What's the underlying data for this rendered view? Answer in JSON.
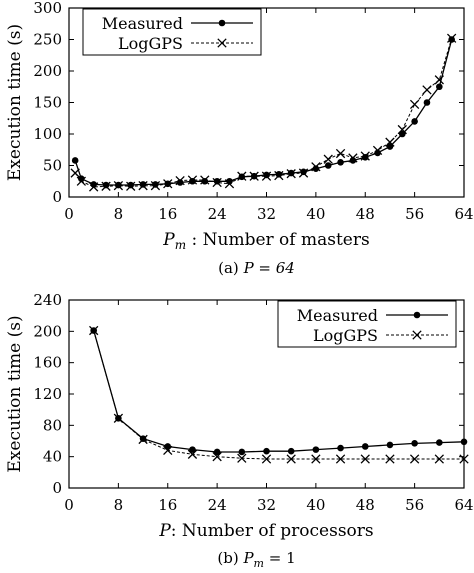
{
  "chart_data": [
    {
      "type": "line",
      "caption_prefix": "(a)",
      "caption_formula": "P = 64",
      "xlabel_var": "P",
      "xlabel_sub": "m",
      "xlabel_text": ": Number of masters",
      "ylabel": "Execution time (s)",
      "xlim": [
        0,
        64
      ],
      "ylim": [
        0,
        300
      ],
      "xticks": [
        0,
        8,
        16,
        24,
        32,
        40,
        48,
        56,
        64
      ],
      "yticks": [
        0,
        50,
        100,
        150,
        200,
        250,
        300
      ],
      "legend_position": "top-left",
      "series": [
        {
          "name": "Measured",
          "marker": "dot",
          "points": [
            [
              1,
              58
            ],
            [
              2,
              29
            ],
            [
              4,
              20
            ],
            [
              6,
              19
            ],
            [
              8,
              19
            ],
            [
              10,
              19
            ],
            [
              12,
              20
            ],
            [
              14,
              20
            ],
            [
              16,
              21
            ],
            [
              18,
              23
            ],
            [
              20,
              25
            ],
            [
              22,
              25
            ],
            [
              24,
              25
            ],
            [
              26,
              25
            ],
            [
              28,
              32
            ],
            [
              30,
              33
            ],
            [
              32,
              35
            ],
            [
              34,
              36
            ],
            [
              36,
              38
            ],
            [
              38,
              40
            ],
            [
              40,
              45
            ],
            [
              42,
              50
            ],
            [
              44,
              55
            ],
            [
              46,
              58
            ],
            [
              48,
              63
            ],
            [
              50,
              70
            ],
            [
              52,
              80
            ],
            [
              54,
              100
            ],
            [
              56,
              120
            ],
            [
              58,
              150
            ],
            [
              60,
              175
            ],
            [
              62,
              250
            ]
          ]
        },
        {
          "name": "LogGPS",
          "marker": "x",
          "points": [
            [
              1,
              38
            ],
            [
              2,
              25
            ],
            [
              4,
              16
            ],
            [
              6,
              17
            ],
            [
              8,
              18
            ],
            [
              10,
              17
            ],
            [
              12,
              18
            ],
            [
              14,
              18
            ],
            [
              16,
              21
            ],
            [
              18,
              26
            ],
            [
              20,
              27
            ],
            [
              22,
              27
            ],
            [
              24,
              23
            ],
            [
              26,
              21
            ],
            [
              28,
              33
            ],
            [
              30,
              33
            ],
            [
              32,
              33
            ],
            [
              34,
              34
            ],
            [
              36,
              37
            ],
            [
              38,
              38
            ],
            [
              40,
              48
            ],
            [
              42,
              60
            ],
            [
              44,
              69
            ],
            [
              46,
              62
            ],
            [
              48,
              65
            ],
            [
              50,
              74
            ],
            [
              52,
              87
            ],
            [
              54,
              107
            ],
            [
              56,
              147
            ],
            [
              58,
              170
            ],
            [
              60,
              186
            ],
            [
              62,
              252
            ]
          ]
        }
      ]
    },
    {
      "type": "line",
      "caption_prefix": "(b)",
      "caption_formula": "P",
      "caption_formula_sub": "m",
      "caption_formula_rest": " = 1",
      "xlabel_var": "P",
      "xlabel_text": ": Number of processors",
      "ylabel": "Execution time (s)",
      "xlim": [
        0,
        64
      ],
      "ylim": [
        0,
        240
      ],
      "xticks": [
        0,
        8,
        16,
        24,
        32,
        40,
        48,
        56,
        64
      ],
      "yticks": [
        0,
        40,
        80,
        120,
        160,
        200,
        240
      ],
      "legend_position": "top-right",
      "series": [
        {
          "name": "Measured",
          "marker": "dot",
          "points": [
            [
              4,
              201
            ],
            [
              8,
              89
            ],
            [
              12,
              63
            ],
            [
              16,
              53
            ],
            [
              20,
              49
            ],
            [
              24,
              46
            ],
            [
              28,
              46
            ],
            [
              32,
              47
            ],
            [
              36,
              47
            ],
            [
              40,
              49
            ],
            [
              44,
              51
            ],
            [
              48,
              53
            ],
            [
              52,
              55
            ],
            [
              56,
              57
            ],
            [
              60,
              58
            ],
            [
              64,
              59
            ]
          ]
        },
        {
          "name": "LogGPS",
          "marker": "x",
          "points": [
            [
              4,
              201
            ],
            [
              8,
              89
            ],
            [
              12,
              62
            ],
            [
              16,
              48
            ],
            [
              20,
              43
            ],
            [
              24,
              40
            ],
            [
              28,
              38
            ],
            [
              32,
              37
            ],
            [
              36,
              37
            ],
            [
              40,
              37
            ],
            [
              44,
              37
            ],
            [
              48,
              37
            ],
            [
              52,
              37
            ],
            [
              56,
              37
            ],
            [
              60,
              37
            ],
            [
              64,
              37
            ]
          ]
        }
      ]
    }
  ]
}
